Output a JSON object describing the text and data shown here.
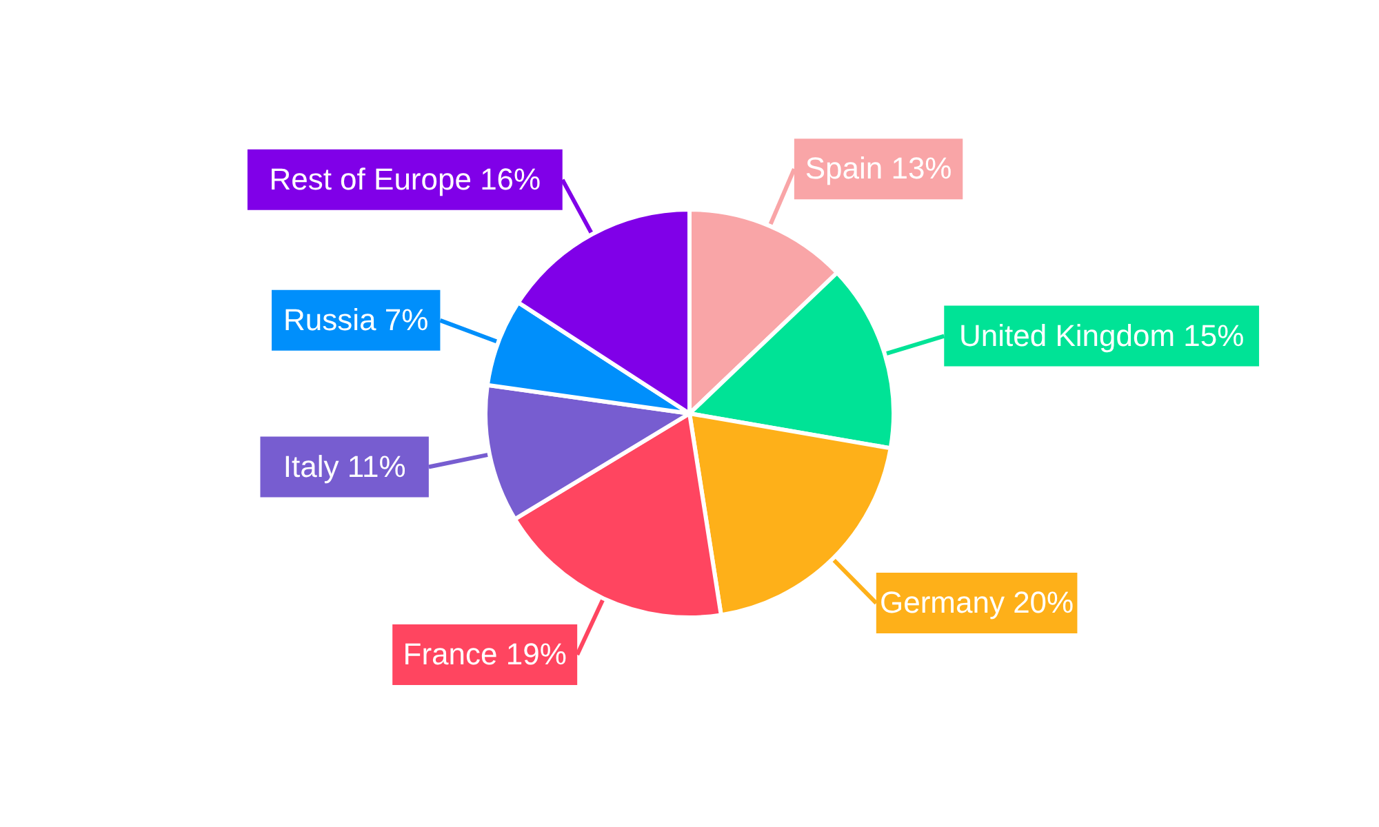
{
  "chart_data": {
    "type": "pie",
    "categories": [
      "Spain",
      "United Kingdom",
      "Germany",
      "France",
      "Italy",
      "Russia",
      "Rest of Europe"
    ],
    "values": [
      13,
      15,
      20,
      19,
      11,
      7,
      16
    ],
    "value_labels": [
      "13%",
      "15%",
      "20%",
      "19%",
      "11%",
      "7%",
      "16%"
    ],
    "colors": [
      "#f9a5a7",
      "#00e396",
      "#feb019",
      "#ff4560",
      "#775dd0",
      "#008ffb",
      "#8000e8"
    ]
  }
}
